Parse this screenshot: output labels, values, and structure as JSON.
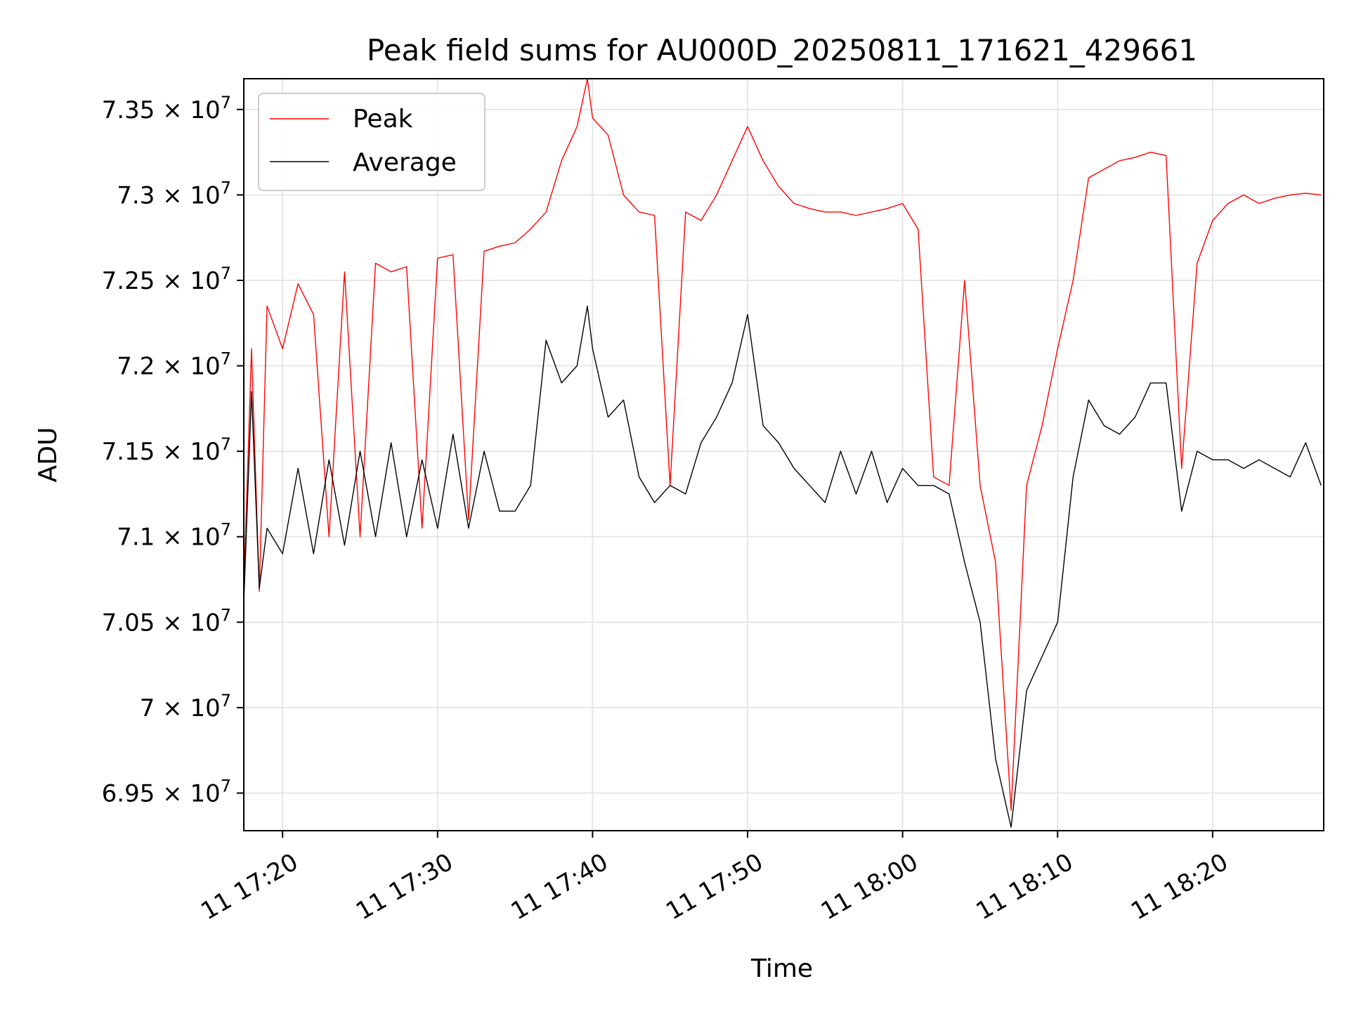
{
  "chart_data": {
    "type": "line",
    "title": "Peak field sums for AU000D_20250811_171621_429661",
    "xlabel": "Time",
    "ylabel": "ADU",
    "xlim": [
      "2025-08-11 17:17:30",
      "2025-08-11 18:27:10"
    ],
    "ylim": [
      69280000,
      73680000
    ],
    "grid": true,
    "legend_position": "upper-left",
    "xticks": [
      "2025-08-11 17:20:00",
      "2025-08-11 17:30:00",
      "2025-08-11 17:40:00",
      "2025-08-11 17:50:00",
      "2025-08-11 18:00:00",
      "2025-08-11 18:10:00",
      "2025-08-11 18:20:00"
    ],
    "xtick_labels": [
      "11 17:20",
      "11 17:30",
      "11 17:40",
      "11 17:50",
      "11 18:00",
      "11 18:10",
      "11 18:20"
    ],
    "yticks": [
      69500000,
      70000000,
      70500000,
      71000000,
      71500000,
      72000000,
      72500000,
      73000000,
      73500000
    ],
    "ytick_mantissas": [
      "6.95",
      "7",
      "7.05",
      "7.1",
      "7.15",
      "7.2",
      "7.25",
      "7.3",
      "7.35"
    ],
    "ytick_exponent": "7",
    "series": [
      {
        "name": "Peak",
        "color": "#ff0000",
        "x": [
          "2025-08-11 17:17:30",
          "2025-08-11 17:18:00",
          "2025-08-11 17:18:30",
          "2025-08-11 17:19:00",
          "2025-08-11 17:20:00",
          "2025-08-11 17:21:00",
          "2025-08-11 17:22:00",
          "2025-08-11 17:23:00",
          "2025-08-11 17:24:00",
          "2025-08-11 17:25:00",
          "2025-08-11 17:26:00",
          "2025-08-11 17:27:00",
          "2025-08-11 17:28:00",
          "2025-08-11 17:29:00",
          "2025-08-11 17:30:00",
          "2025-08-11 17:31:00",
          "2025-08-11 17:32:00",
          "2025-08-11 17:33:00",
          "2025-08-11 17:34:00",
          "2025-08-11 17:35:00",
          "2025-08-11 17:36:00",
          "2025-08-11 17:37:00",
          "2025-08-11 17:38:00",
          "2025-08-11 17:39:00",
          "2025-08-11 17:39:40",
          "2025-08-11 17:40:00",
          "2025-08-11 17:41:00",
          "2025-08-11 17:42:00",
          "2025-08-11 17:43:00",
          "2025-08-11 17:44:00",
          "2025-08-11 17:45:00",
          "2025-08-11 17:46:00",
          "2025-08-11 17:47:00",
          "2025-08-11 17:48:00",
          "2025-08-11 17:49:00",
          "2025-08-11 17:50:00",
          "2025-08-11 17:51:00",
          "2025-08-11 17:52:00",
          "2025-08-11 17:53:00",
          "2025-08-11 17:54:00",
          "2025-08-11 17:55:00",
          "2025-08-11 17:56:00",
          "2025-08-11 17:57:00",
          "2025-08-11 17:58:00",
          "2025-08-11 17:59:00",
          "2025-08-11 18:00:00",
          "2025-08-11 18:01:00",
          "2025-08-11 18:02:00",
          "2025-08-11 18:03:00",
          "2025-08-11 18:04:00",
          "2025-08-11 18:05:00",
          "2025-08-11 18:06:00",
          "2025-08-11 18:07:00",
          "2025-08-11 18:08:00",
          "2025-08-11 18:09:00",
          "2025-08-11 18:10:00",
          "2025-08-11 18:11:00",
          "2025-08-11 18:12:00",
          "2025-08-11 18:13:00",
          "2025-08-11 18:14:00",
          "2025-08-11 18:15:00",
          "2025-08-11 18:16:00",
          "2025-08-11 18:17:00",
          "2025-08-11 18:18:00",
          "2025-08-11 18:19:00",
          "2025-08-11 18:20:00",
          "2025-08-11 18:21:00",
          "2025-08-11 18:22:00",
          "2025-08-11 18:23:00",
          "2025-08-11 18:24:00",
          "2025-08-11 18:25:00",
          "2025-08-11 18:26:00",
          "2025-08-11 18:27:00"
        ],
        "y": [
          70700000,
          72100000,
          70680000,
          72350000,
          72100000,
          72480000,
          72300000,
          71000000,
          72550000,
          71000000,
          72600000,
          72550000,
          72580000,
          71050000,
          72630000,
          72650000,
          71100000,
          72670000,
          72700000,
          72720000,
          72800000,
          72900000,
          73200000,
          73400000,
          73680000,
          73450000,
          73350000,
          73000000,
          72900000,
          72880000,
          71300000,
          72900000,
          72850000,
          73000000,
          73200000,
          73400000,
          73200000,
          73050000,
          72950000,
          72920000,
          72900000,
          72900000,
          72880000,
          72900000,
          72920000,
          72950000,
          72800000,
          71350000,
          71300000,
          72500000,
          71300000,
          70850000,
          69400000,
          71300000,
          71650000,
          72100000,
          72500000,
          73100000,
          73150000,
          73200000,
          73220000,
          73250000,
          73230000,
          71400000,
          72600000,
          72850000,
          72950000,
          73000000,
          72950000,
          72980000,
          73000000,
          73010000,
          73000000
        ]
      },
      {
        "name": "Average",
        "color": "#000000",
        "x": [
          "2025-08-11 17:17:30",
          "2025-08-11 17:18:00",
          "2025-08-11 17:18:30",
          "2025-08-11 17:19:00",
          "2025-08-11 17:20:00",
          "2025-08-11 17:21:00",
          "2025-08-11 17:22:00",
          "2025-08-11 17:23:00",
          "2025-08-11 17:24:00",
          "2025-08-11 17:25:00",
          "2025-08-11 17:26:00",
          "2025-08-11 17:27:00",
          "2025-08-11 17:28:00",
          "2025-08-11 17:29:00",
          "2025-08-11 17:30:00",
          "2025-08-11 17:31:00",
          "2025-08-11 17:32:00",
          "2025-08-11 17:33:00",
          "2025-08-11 17:34:00",
          "2025-08-11 17:35:00",
          "2025-08-11 17:36:00",
          "2025-08-11 17:37:00",
          "2025-08-11 17:38:00",
          "2025-08-11 17:39:00",
          "2025-08-11 17:39:40",
          "2025-08-11 17:40:00",
          "2025-08-11 17:41:00",
          "2025-08-11 17:42:00",
          "2025-08-11 17:43:00",
          "2025-08-11 17:44:00",
          "2025-08-11 17:45:00",
          "2025-08-11 17:46:00",
          "2025-08-11 17:47:00",
          "2025-08-11 17:48:00",
          "2025-08-11 17:49:00",
          "2025-08-11 17:50:00",
          "2025-08-11 17:51:00",
          "2025-08-11 17:52:00",
          "2025-08-11 17:53:00",
          "2025-08-11 17:54:00",
          "2025-08-11 17:55:00",
          "2025-08-11 17:56:00",
          "2025-08-11 17:57:00",
          "2025-08-11 17:58:00",
          "2025-08-11 17:59:00",
          "2025-08-11 18:00:00",
          "2025-08-11 18:01:00",
          "2025-08-11 18:02:00",
          "2025-08-11 18:03:00",
          "2025-08-11 18:04:00",
          "2025-08-11 18:05:00",
          "2025-08-11 18:06:00",
          "2025-08-11 18:07:00",
          "2025-08-11 18:08:00",
          "2025-08-11 18:09:00",
          "2025-08-11 18:10:00",
          "2025-08-11 18:11:00",
          "2025-08-11 18:12:00",
          "2025-08-11 18:13:00",
          "2025-08-11 18:14:00",
          "2025-08-11 18:15:00",
          "2025-08-11 18:16:00",
          "2025-08-11 18:17:00",
          "2025-08-11 18:18:00",
          "2025-08-11 18:19:00",
          "2025-08-11 18:20:00",
          "2025-08-11 18:21:00",
          "2025-08-11 18:22:00",
          "2025-08-11 18:23:00",
          "2025-08-11 18:24:00",
          "2025-08-11 18:25:00",
          "2025-08-11 18:26:00",
          "2025-08-11 18:27:00"
        ],
        "y": [
          70620000,
          71850000,
          70700000,
          71050000,
          70900000,
          71400000,
          70900000,
          71450000,
          70950000,
          71500000,
          71000000,
          71550000,
          71000000,
          71450000,
          71050000,
          71600000,
          71050000,
          71500000,
          71150000,
          71150000,
          71300000,
          72150000,
          71900000,
          72000000,
          72350000,
          72100000,
          71700000,
          71800000,
          71350000,
          71200000,
          71300000,
          71250000,
          71550000,
          71700000,
          71900000,
          72300000,
          71650000,
          71550000,
          71400000,
          71300000,
          71200000,
          71500000,
          71250000,
          71500000,
          71200000,
          71400000,
          71300000,
          71300000,
          71250000,
          70850000,
          70500000,
          69700000,
          69300000,
          70100000,
          70300000,
          70500000,
          71350000,
          71800000,
          71650000,
          71600000,
          71700000,
          71900000,
          71900000,
          71150000,
          71500000,
          71450000,
          71450000,
          71400000,
          71450000,
          71400000,
          71350000,
          71550000,
          71300000
        ]
      }
    ]
  }
}
